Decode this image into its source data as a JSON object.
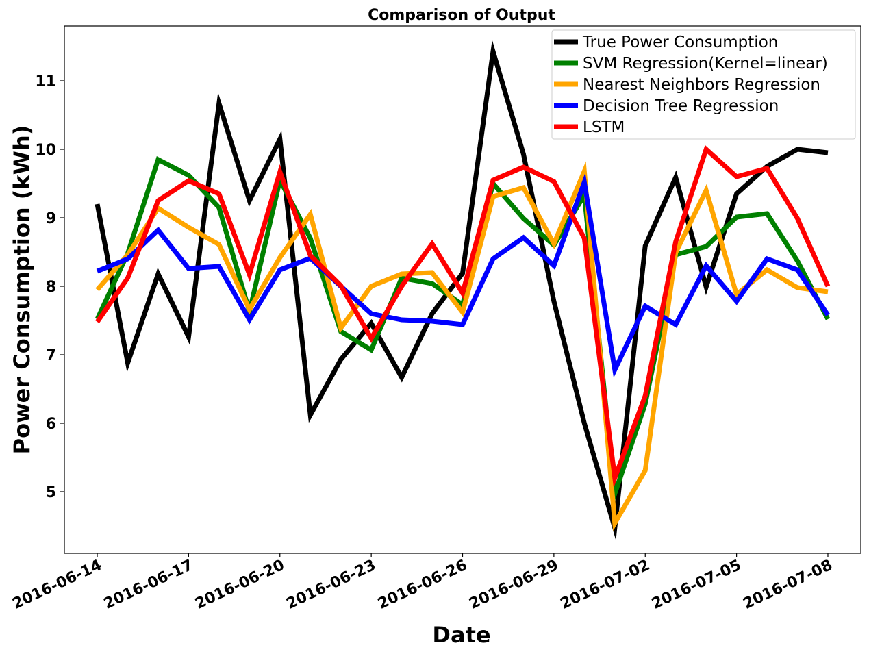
{
  "chart_data": {
    "type": "line",
    "title": "Comparison of Output",
    "xlabel": "Date",
    "ylabel": "Power Consumption (kWh)",
    "x": [
      "2016-06-14",
      "2016-06-15",
      "2016-06-16",
      "2016-06-17",
      "2016-06-18",
      "2016-06-19",
      "2016-06-20",
      "2016-06-21",
      "2016-06-22",
      "2016-06-23",
      "2016-06-24",
      "2016-06-25",
      "2016-06-26",
      "2016-06-27",
      "2016-06-28",
      "2016-06-29",
      "2016-06-30",
      "2016-07-01",
      "2016-07-02",
      "2016-07-03",
      "2016-07-04",
      "2016-07-05",
      "2016-07-06",
      "2016-07-07",
      "2016-07-08"
    ],
    "xticks": [
      "2016-06-14",
      "2016-06-17",
      "2016-06-20",
      "2016-06-23",
      "2016-06-26",
      "2016-06-29",
      "2016-07-02",
      "2016-07-05",
      "2016-07-08"
    ],
    "yticks": [
      5,
      6,
      7,
      8,
      9,
      10,
      11
    ],
    "ylim": [
      4.1,
      11.8
    ],
    "legend_position": "upper right",
    "series": [
      {
        "name": "True Power Consumption",
        "color": "#000000",
        "values": [
          9.2,
          6.88,
          8.18,
          7.26,
          10.67,
          9.25,
          10.15,
          6.12,
          6.93,
          7.46,
          6.67,
          7.6,
          8.19,
          11.43,
          9.93,
          7.78,
          6.0,
          4.47,
          8.59,
          9.59,
          7.99,
          9.35,
          9.75,
          10.0,
          9.95
        ]
      },
      {
        "name": "SVM Regression(Kernel=linear)",
        "color": "#008000",
        "values": [
          7.52,
          8.48,
          9.85,
          9.62,
          9.15,
          7.63,
          9.55,
          8.7,
          7.34,
          7.07,
          8.12,
          8.04,
          7.73,
          9.5,
          8.99,
          8.6,
          9.33,
          4.97,
          6.28,
          8.46,
          8.58,
          9.01,
          9.06,
          8.37,
          7.52
        ]
      },
      {
        "name": "Nearest Neighbors Regression",
        "color": "#FFA500",
        "values": [
          7.95,
          8.46,
          9.14,
          8.86,
          8.61,
          7.66,
          8.42,
          9.05,
          7.39,
          8.0,
          8.18,
          8.2,
          7.62,
          9.31,
          9.44,
          8.62,
          9.68,
          4.54,
          5.31,
          8.49,
          9.4,
          7.88,
          8.24,
          7.98,
          7.92
        ]
      },
      {
        "name": "Decision Tree Regression",
        "color": "#0000FF",
        "values": [
          8.22,
          8.4,
          8.82,
          8.26,
          8.29,
          7.51,
          8.24,
          8.41,
          8.0,
          7.6,
          7.51,
          7.49,
          7.44,
          8.4,
          8.71,
          8.3,
          9.52,
          6.78,
          7.71,
          7.44,
          8.3,
          7.78,
          8.4,
          8.24,
          7.58
        ]
      },
      {
        "name": "LSTM",
        "color": "#FF0000",
        "values": [
          7.48,
          8.12,
          9.25,
          9.54,
          9.35,
          8.17,
          9.67,
          8.45,
          8.01,
          7.24,
          8.0,
          8.62,
          7.9,
          9.55,
          9.74,
          9.53,
          8.7,
          5.2,
          6.4,
          8.65,
          10.0,
          9.6,
          9.72,
          8.99,
          8.0
        ]
      }
    ]
  }
}
